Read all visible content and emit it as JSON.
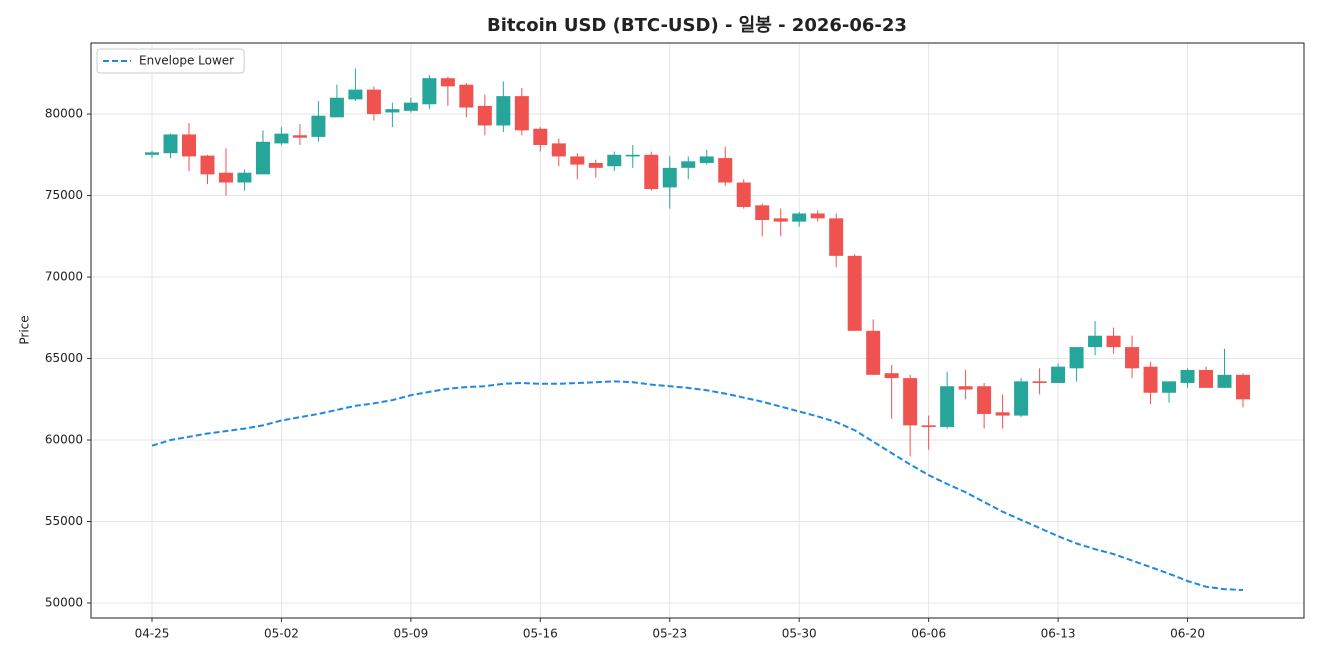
{
  "chart_data": {
    "type": "candlestick",
    "title": "Bitcoin USD (BTC-USD) - 일봉 - 2026-06-23",
    "y_label": "Price",
    "x": [
      "04-25",
      "04-26",
      "04-27",
      "04-28",
      "04-29",
      "04-30",
      "05-01",
      "05-02",
      "05-03",
      "05-04",
      "05-05",
      "05-06",
      "05-07",
      "05-08",
      "05-09",
      "05-10",
      "05-11",
      "05-12",
      "05-13",
      "05-14",
      "05-15",
      "05-16",
      "05-17",
      "05-18",
      "05-19",
      "05-20",
      "05-21",
      "05-22",
      "05-23",
      "05-24",
      "05-25",
      "05-26",
      "05-27",
      "05-28",
      "05-29",
      "05-30",
      "05-31",
      "06-01",
      "06-02",
      "06-03",
      "06-04",
      "06-05",
      "06-06",
      "06-07",
      "06-08",
      "06-09",
      "06-10",
      "06-11",
      "06-12",
      "06-13",
      "06-14",
      "06-15",
      "06-16",
      "06-17",
      "06-18",
      "06-19",
      "06-20",
      "06-21",
      "06-22",
      "06-23"
    ],
    "open": [
      77500,
      77600,
      78750,
      77450,
      76400,
      75800,
      76300,
      78200,
      78700,
      78600,
      79800,
      80900,
      81500,
      80100,
      80200,
      80600,
      82200,
      81800,
      80500,
      79300,
      81100,
      79100,
      78200,
      77400,
      77000,
      76800,
      77400,
      77500,
      75500,
      76700,
      77000,
      77300,
      75800,
      74400,
      73600,
      73400,
      73900,
      73600,
      71300,
      66700,
      64100,
      63800,
      60900,
      60800,
      63300,
      63300,
      61700,
      61500,
      63600,
      63500,
      64400,
      65700,
      66400,
      65700,
      64500,
      62900,
      63500,
      64300,
      63200,
      64000
    ],
    "high": [
      77750,
      78800,
      79450,
      77500,
      77900,
      76600,
      79000,
      79200,
      79400,
      80800,
      81800,
      82800,
      81700,
      80700,
      81000,
      82400,
      82300,
      81900,
      81200,
      82000,
      81600,
      79200,
      78500,
      77600,
      77200,
      77700,
      78100,
      77700,
      77400,
      77400,
      77800,
      78000,
      76000,
      74500,
      74200,
      74000,
      74100,
      73900,
      71400,
      67400,
      64600,
      64000,
      61500,
      64200,
      64300,
      63500,
      62800,
      63800,
      64400,
      64700,
      65700,
      67300,
      66900,
      66400,
      64800,
      63600,
      64400,
      64500,
      65600,
      64100
    ],
    "low": [
      77300,
      77300,
      76500,
      75700,
      75000,
      75300,
      76300,
      78100,
      78100,
      78300,
      79800,
      80800,
      79600,
      79200,
      80100,
      80300,
      80500,
      79800,
      78700,
      78900,
      78700,
      77700,
      76800,
      76000,
      76100,
      76500,
      76700,
      75300,
      74200,
      76000,
      76900,
      75600,
      74200,
      72500,
      72500,
      73100,
      73400,
      70600,
      66700,
      64000,
      61300,
      59000,
      59400,
      60700,
      62500,
      60700,
      60700,
      61400,
      62800,
      63500,
      63600,
      65200,
      65300,
      63800,
      62200,
      62300,
      63200,
      63200,
      63200,
      62000
    ],
    "close": [
      77650,
      78750,
      77400,
      76300,
      75800,
      76400,
      78300,
      78800,
      78550,
      79900,
      81000,
      81500,
      80000,
      80300,
      80700,
      82200,
      81700,
      80400,
      79300,
      81100,
      79000,
      78100,
      77400,
      76900,
      76700,
      77500,
      77500,
      75400,
      76700,
      77100,
      77400,
      75800,
      74300,
      73500,
      73400,
      73900,
      73600,
      71300,
      66700,
      64000,
      63800,
      60900,
      60800,
      63300,
      63100,
      61600,
      61500,
      63600,
      63500,
      64500,
      65700,
      66400,
      65700,
      64400,
      62900,
      63600,
      64300,
      63200,
      64000,
      62500
    ],
    "up_color": "#26a69a",
    "down_color": "#ef5350",
    "series": [
      {
        "name": "Envelope Lower",
        "color": "#1e88e5",
        "dashed": true,
        "values": [
          59650,
          60000,
          60200,
          60400,
          60550,
          60700,
          60900,
          61200,
          61400,
          61600,
          61850,
          62100,
          62250,
          62450,
          62750,
          62950,
          63150,
          63250,
          63300,
          63450,
          63500,
          63450,
          63450,
          63500,
          63550,
          63600,
          63550,
          63400,
          63300,
          63200,
          63050,
          62850,
          62600,
          62350,
          62050,
          61750,
          61450,
          61100,
          60600,
          59900,
          59200,
          58500,
          57850,
          57300,
          56800,
          56200,
          55600,
          55100,
          54600,
          54100,
          53650,
          53300,
          53000,
          52600,
          52200,
          51800,
          51350,
          51000,
          50850,
          50800
        ]
      }
    ],
    "ylim": [
      49080,
      84360
    ],
    "yticks": [
      50000,
      55000,
      60000,
      65000,
      70000,
      75000,
      80000
    ],
    "grid": true,
    "legend": "upper-left"
  }
}
